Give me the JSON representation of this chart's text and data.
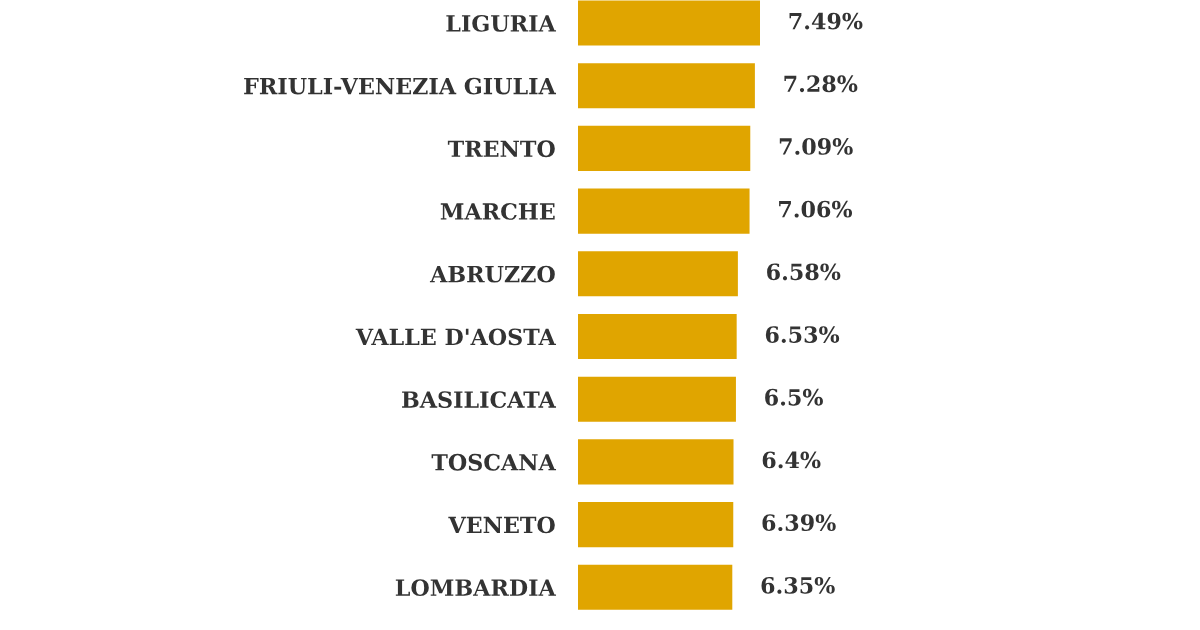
{
  "chart_data": {
    "type": "bar",
    "orientation": "horizontal",
    "categories": [
      "LIGURIA",
      "FRIULI-VENEZIA GIULIA",
      "TRENTO",
      "MARCHE",
      "ABRUZZO",
      "VALLE D'AOSTA",
      "BASILICATA",
      "TOSCANA",
      "VENETO",
      "LOMBARDIA"
    ],
    "values": [
      7.49,
      7.28,
      7.09,
      7.06,
      6.58,
      6.53,
      6.5,
      6.4,
      6.39,
      6.35
    ],
    "value_labels": [
      "7.49%",
      "7.28%",
      "7.09%",
      "7.06%",
      "6.58%",
      "6.53%",
      "6.5%",
      "6.4%",
      "6.39%",
      "6.35%"
    ],
    "color": "#e0a500",
    "grid": false,
    "legend": false
  }
}
